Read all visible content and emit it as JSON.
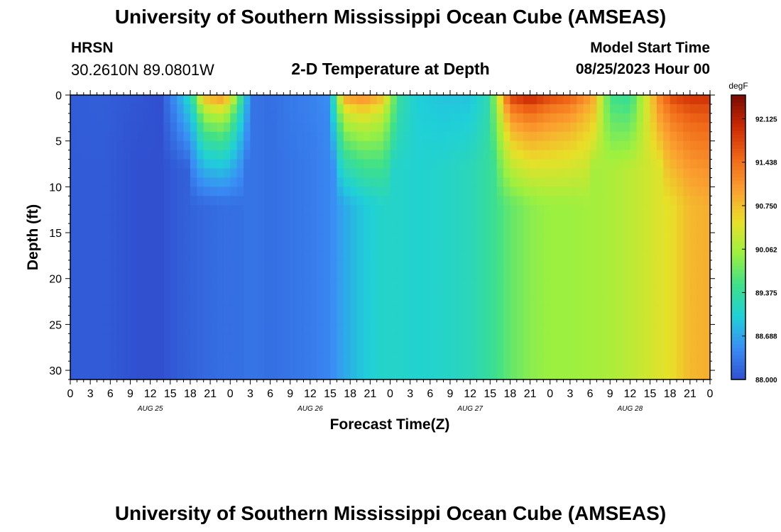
{
  "page": {
    "title": "University of Southern Mississippi Ocean Cube (AMSEAS)",
    "title_repeat": "University of Southern Mississippi Ocean Cube (AMSEAS)",
    "station": "HRSN",
    "coords": "30.2610N  89.0801W",
    "model_label": "Model Start Time",
    "model_time": "08/25/2023 Hour 00"
  },
  "chart_data": {
    "type": "heatmap",
    "title": "2-D Temperature at Depth",
    "xlabel": "Forecast Time(Z)",
    "ylabel": "Depth (ft)",
    "x_unit": "hours from 08/25/2023 00Z",
    "xlim": [
      0,
      96
    ],
    "ylim": [
      0,
      31
    ],
    "y_inverted": true,
    "x_tick_labels": [
      "0",
      "3",
      "6",
      "9",
      "12",
      "15",
      "18",
      "21",
      "0",
      "3",
      "6",
      "9",
      "12",
      "15",
      "18",
      "21",
      "0",
      "3",
      "6",
      "9",
      "12",
      "15",
      "18",
      "21",
      "0",
      "3",
      "6",
      "9",
      "12",
      "15",
      "18",
      "21",
      "0"
    ],
    "y_ticks": [
      0,
      5,
      10,
      15,
      20,
      25,
      30
    ],
    "day_labels": [
      {
        "label": "AUG 25",
        "hour": 12
      },
      {
        "label": "AUG 26",
        "hour": 36
      },
      {
        "label": "AUG 27",
        "hour": 60
      },
      {
        "label": "AUG 28",
        "hour": 84
      }
    ],
    "colorbar": {
      "unit": "degF",
      "min": 88.0,
      "max": 92.5,
      "ticks": [
        88.0,
        88.688,
        89.375,
        90.062,
        90.75,
        91.438,
        92.125
      ],
      "tick_labels": [
        "88.000",
        "88.688",
        "89.375",
        "90.062",
        "90.750",
        "91.438",
        "92.125"
      ],
      "colormap": [
        "#3050d0",
        "#3a8df5",
        "#1fd0d8",
        "#3ee08a",
        "#9cf040",
        "#e8e028",
        "#fba030",
        "#f06818",
        "#cc2a04",
        "#7a0a04"
      ]
    },
    "profiles": [
      {
        "hour": 0,
        "surface": 88.1,
        "bottom": 88.1
      },
      {
        "hour": 5,
        "surface": 88.12,
        "bottom": 88.1
      },
      {
        "hour": 10,
        "surface": 88.05,
        "bottom": 88.0
      },
      {
        "hour": 13.5,
        "surface": 88.0,
        "bottom": 88.0
      },
      {
        "hour": 16,
        "surface": 88.6,
        "bottom": 88.1
      },
      {
        "hour": 18,
        "surface": 89.2,
        "bottom": 88.15
      },
      {
        "hour": 20,
        "surface": 91.2,
        "bottom": 88.2
      },
      {
        "hour": 23,
        "surface": 91.5,
        "bottom": 88.25
      },
      {
        "hour": 25,
        "surface": 90.2,
        "bottom": 88.25
      },
      {
        "hour": 27,
        "surface": 88.3,
        "bottom": 88.3
      },
      {
        "hour": 30,
        "surface": 88.25,
        "bottom": 88.25
      },
      {
        "hour": 33,
        "surface": 88.35,
        "bottom": 88.3
      },
      {
        "hour": 36,
        "surface": 88.4,
        "bottom": 88.35
      },
      {
        "hour": 39,
        "surface": 88.5,
        "bottom": 88.45
      },
      {
        "hour": 41,
        "surface": 91.3,
        "bottom": 88.7
      },
      {
        "hour": 44,
        "surface": 91.5,
        "bottom": 88.95
      },
      {
        "hour": 47,
        "surface": 91.0,
        "bottom": 89.1
      },
      {
        "hour": 49,
        "surface": 89.4,
        "bottom": 89.1
      },
      {
        "hour": 52,
        "surface": 89.0,
        "bottom": 89.05
      },
      {
        "hour": 56,
        "surface": 88.9,
        "bottom": 89.1
      },
      {
        "hour": 60,
        "surface": 88.9,
        "bottom": 89.2
      },
      {
        "hour": 63,
        "surface": 89.3,
        "bottom": 89.4
      },
      {
        "hour": 66,
        "surface": 92.1,
        "bottom": 89.7
      },
      {
        "hour": 69,
        "surface": 92.4,
        "bottom": 89.9
      },
      {
        "hour": 72,
        "surface": 92.0,
        "bottom": 90.0
      },
      {
        "hour": 75,
        "surface": 91.8,
        "bottom": 90.0
      },
      {
        "hour": 78,
        "surface": 91.2,
        "bottom": 90.05
      },
      {
        "hour": 81,
        "surface": 89.5,
        "bottom": 90.1
      },
      {
        "hour": 84,
        "surface": 89.4,
        "bottom": 90.2
      },
      {
        "hour": 87,
        "surface": 90.6,
        "bottom": 90.35
      },
      {
        "hour": 90,
        "surface": 91.9,
        "bottom": 90.5
      },
      {
        "hour": 93,
        "surface": 92.1,
        "bottom": 90.8
      },
      {
        "hour": 96,
        "surface": 92.1,
        "bottom": 90.9
      }
    ]
  }
}
